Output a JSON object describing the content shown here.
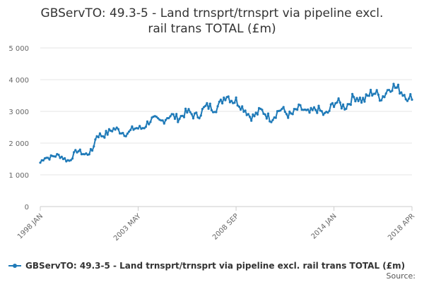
{
  "chart_data": {
    "type": "line",
    "title_line1": "GBServTO: 49.3-5 - Land trnsprt/trnsprt via pipeline excl.",
    "title_line2": "rail trans TOTAL (£m)",
    "xlabel": "",
    "ylabel": "",
    "ylim": [
      0,
      5000
    ],
    "y_ticks": [
      0,
      1000,
      2000,
      3000,
      4000,
      5000
    ],
    "y_tick_labels": [
      "0",
      "1 000",
      "2 000",
      "3 000",
      "4 000",
      "5 000"
    ],
    "x_range": [
      "1998-01",
      "2018-04"
    ],
    "x_tick_labels": [
      "1998 JAN",
      "2003 MAY",
      "2008 SEP",
      "2014 JAN",
      "2018 APR"
    ],
    "x_tick_dates": [
      "1998-01",
      "2003-05",
      "2008-09",
      "2014-01",
      "2018-04"
    ],
    "grid": true,
    "legend_position": "bottom",
    "series": [
      {
        "name": "GBServTO: 49.3-5 - Land trnsprt/trnsprt via pipeline excl. rail trans TOTAL (£m)",
        "color": "#1f7ab8",
        "anchors": [
          [
            "1998-01",
            1350
          ],
          [
            "1998-04",
            1560
          ],
          [
            "1998-09",
            1600
          ],
          [
            "1999-03",
            1550
          ],
          [
            "1999-08",
            1480
          ],
          [
            "2000-01",
            1720
          ],
          [
            "2000-06",
            1680
          ],
          [
            "2000-11",
            1750
          ],
          [
            "2001-02",
            2200
          ],
          [
            "2001-08",
            2350
          ],
          [
            "2002-01",
            2380
          ],
          [
            "2002-06",
            2420
          ],
          [
            "2002-11",
            2300
          ],
          [
            "2003-05",
            2500
          ],
          [
            "2003-11",
            2600
          ],
          [
            "2004-05",
            2750
          ],
          [
            "2004-11",
            2750
          ],
          [
            "2005-05",
            2850
          ],
          [
            "2005-11",
            2900
          ],
          [
            "2006-05",
            2900
          ],
          [
            "2006-11",
            3000
          ],
          [
            "2007-05",
            3150
          ],
          [
            "2007-11",
            3250
          ],
          [
            "2008-03",
            3450
          ],
          [
            "2008-09",
            3420
          ],
          [
            "2009-01",
            3050
          ],
          [
            "2009-06",
            2900
          ],
          [
            "2010-01",
            2950
          ],
          [
            "2010-08",
            2850
          ],
          [
            "2011-03",
            3000
          ],
          [
            "2011-10",
            2950
          ],
          [
            "2012-05",
            3050
          ],
          [
            "2012-12",
            3000
          ],
          [
            "2013-07",
            2950
          ],
          [
            "2014-01",
            3200
          ],
          [
            "2014-09",
            3250
          ],
          [
            "2015-04",
            3400
          ],
          [
            "2016-01",
            3500
          ],
          [
            "2016-08",
            3550
          ],
          [
            "2017-03",
            3700
          ],
          [
            "2017-08",
            3800
          ],
          [
            "2017-12",
            3500
          ],
          [
            "2018-02",
            3250
          ],
          [
            "2018-04",
            3450
          ]
        ]
      }
    ]
  },
  "footer": {
    "source_label": "Source:"
  }
}
